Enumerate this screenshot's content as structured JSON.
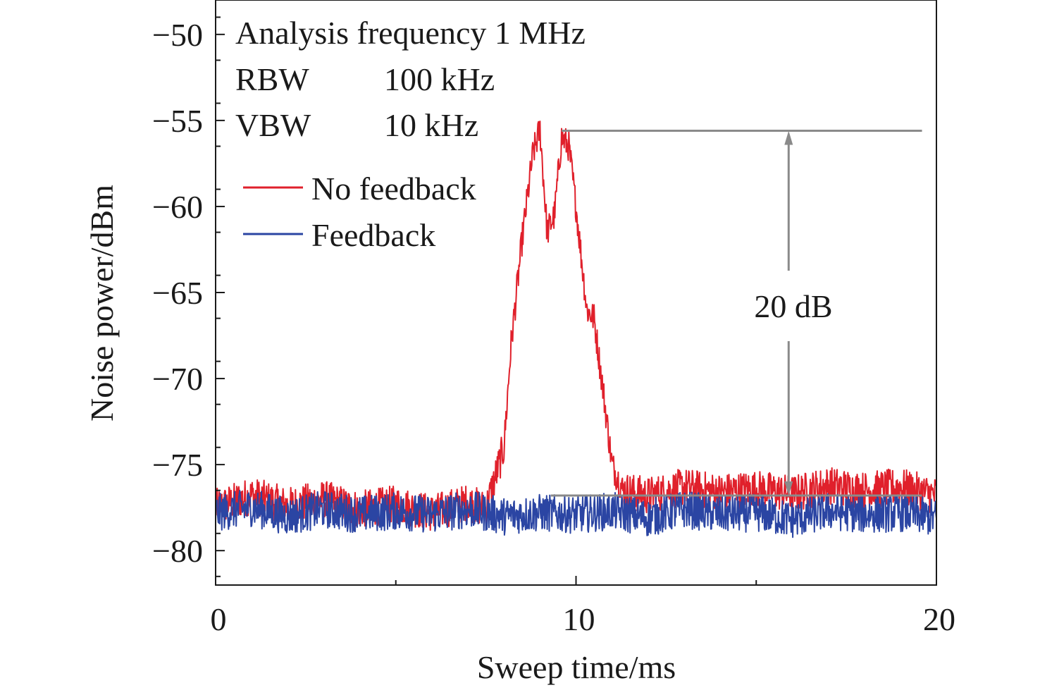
{
  "chart_data": {
    "type": "line",
    "title": "",
    "xlabel": "Sweep time/ms",
    "ylabel": "Noise power/dBm",
    "xlim": [
      0,
      20
    ],
    "ylim": [
      -82,
      -48
    ],
    "xticks": [
      0,
      10,
      20
    ],
    "yticks": [
      -50,
      -55,
      -60,
      -65,
      -70,
      -75,
      -80
    ],
    "xtick_labels": [
      "0",
      "10",
      "20"
    ],
    "ytick_labels": [
      "−50",
      "−55",
      "−60",
      "−65",
      "−70",
      "−75",
      "−80"
    ],
    "grid": false,
    "legend_position": "upper-left",
    "annotations": {
      "line1": "Analysis frequency 1 MHz",
      "rbw_label": "RBW",
      "rbw_value": "100 kHz",
      "vbw_label": "VBW",
      "vbw_value": "10 kHz",
      "difference_label": "20 dB",
      "top_level_dbm": -55.6,
      "bottom_level_dbm": -76.8,
      "arrow_x_ms": 15.9
    },
    "series": [
      {
        "name": "No feedback",
        "color": "#e0202b",
        "x": [
          0,
          1,
          2,
          3,
          4,
          5,
          6,
          7,
          7.5,
          8,
          8.2,
          8.5,
          8.8,
          9.0,
          9.2,
          9.4,
          9.6,
          9.8,
          10.0,
          10.3,
          10.5,
          10.8,
          11.0,
          11.3,
          12,
          13,
          14,
          15,
          16,
          17,
          18,
          19,
          20
        ],
        "y": [
          -77.5,
          -76.8,
          -77.4,
          -77.0,
          -77.6,
          -77.3,
          -77.8,
          -77.2,
          -77.6,
          -74.0,
          -68.0,
          -62.0,
          -57.0,
          -55.5,
          -61.5,
          -60.5,
          -56.0,
          -56.5,
          -60.0,
          -66.0,
          -66.5,
          -71.5,
          -75.0,
          -76.5,
          -76.8,
          -76.3,
          -76.6,
          -76.4,
          -76.7,
          -76.2,
          -76.5,
          -76.3,
          -76.8
        ]
      },
      {
        "name": "Feedback",
        "color": "#2b45a3",
        "x": [
          0,
          1,
          2,
          3,
          4,
          5,
          6,
          7,
          8,
          9,
          10,
          11,
          12,
          13,
          14,
          15,
          16,
          17,
          18,
          19,
          20
        ],
        "y": [
          -77.8,
          -77.5,
          -78.0,
          -77.6,
          -77.9,
          -77.7,
          -77.9,
          -77.6,
          -78.0,
          -77.8,
          -77.9,
          -77.7,
          -78.1,
          -77.6,
          -77.9,
          -77.8,
          -78.2,
          -77.7,
          -77.9,
          -77.8,
          -78.1
        ]
      }
    ]
  }
}
